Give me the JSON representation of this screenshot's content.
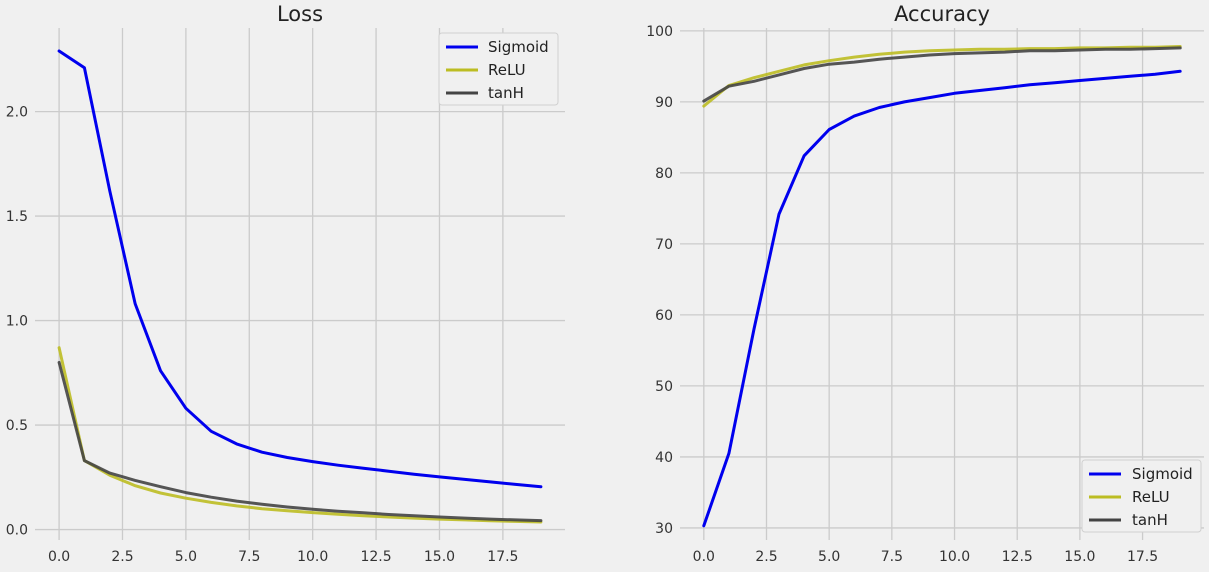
{
  "chart_data": [
    {
      "type": "line",
      "title": "Loss",
      "xlabel": "",
      "ylabel": "",
      "xlim": [
        -0.95,
        19.95
      ],
      "ylim": [
        -0.05,
        2.4
      ],
      "xticks": [
        0,
        2.5,
        5,
        7.5,
        10,
        12.5,
        15,
        17.5
      ],
      "xtick_labels": [
        "0.0",
        "2.5",
        "5.0",
        "7.5",
        "10.0",
        "12.5",
        "15.0",
        "17.5"
      ],
      "yticks": [
        0,
        0.5,
        1,
        1.5,
        2
      ],
      "ytick_labels": [
        "0.0",
        "0.5",
        "1.0",
        "1.5",
        "2.0"
      ],
      "grid": true,
      "legend_position": "top-right",
      "x": [
        0,
        1,
        2,
        3,
        4,
        5,
        6,
        7,
        8,
        9,
        10,
        11,
        12,
        13,
        14,
        15,
        16,
        17,
        18,
        19
      ],
      "series": [
        {
          "name": "Sigmoid",
          "color": "#0000ee",
          "values": [
            2.29,
            2.21,
            1.62,
            1.08,
            0.76,
            0.58,
            0.47,
            0.41,
            0.37,
            0.345,
            0.325,
            0.308,
            0.293,
            0.279,
            0.265,
            0.252,
            0.24,
            0.228,
            0.216,
            0.205
          ]
        },
        {
          "name": "ReLU",
          "color": "#bcbd22",
          "values": [
            0.87,
            0.33,
            0.26,
            0.21,
            0.175,
            0.15,
            0.13,
            0.113,
            0.1,
            0.09,
            0.081,
            0.073,
            0.066,
            0.06,
            0.055,
            0.05,
            0.046,
            0.042,
            0.039,
            0.036
          ]
        },
        {
          "name": "tanH",
          "color": "#444444",
          "values": [
            0.8,
            0.33,
            0.27,
            0.235,
            0.205,
            0.177,
            0.155,
            0.136,
            0.121,
            0.108,
            0.097,
            0.088,
            0.08,
            0.072,
            0.066,
            0.06,
            0.055,
            0.05,
            0.046,
            0.043
          ]
        }
      ]
    },
    {
      "type": "line",
      "title": "Accuracy",
      "xlabel": "",
      "ylabel": "",
      "xlim": [
        -0.95,
        19.95
      ],
      "ylim": [
        28.3,
        100.4
      ],
      "xticks": [
        0,
        2.5,
        5,
        7.5,
        10,
        12.5,
        15,
        17.5
      ],
      "xtick_labels": [
        "0.0",
        "2.5",
        "5.0",
        "7.5",
        "10.0",
        "12.5",
        "15.0",
        "17.5"
      ],
      "yticks": [
        30,
        40,
        50,
        60,
        70,
        80,
        90,
        100
      ],
      "ytick_labels": [
        "30",
        "40",
        "50",
        "60",
        "70",
        "80",
        "90",
        "100"
      ],
      "grid": true,
      "legend_position": "bottom-right",
      "x": [
        0,
        1,
        2,
        3,
        4,
        5,
        6,
        7,
        8,
        9,
        10,
        11,
        12,
        13,
        14,
        15,
        16,
        17,
        18,
        19
      ],
      "series": [
        {
          "name": "Sigmoid",
          "color": "#0000ee",
          "values": [
            30.3,
            40.5,
            58.0,
            74.2,
            82.4,
            86.1,
            88.0,
            89.2,
            90.0,
            90.6,
            91.2,
            91.6,
            92.0,
            92.4,
            92.7,
            93.0,
            93.3,
            93.6,
            93.9,
            94.3
          ]
        },
        {
          "name": "ReLU",
          "color": "#bcbd22",
          "values": [
            89.4,
            92.3,
            93.4,
            94.3,
            95.2,
            95.8,
            96.3,
            96.7,
            97.0,
            97.2,
            97.3,
            97.4,
            97.4,
            97.5,
            97.5,
            97.6,
            97.6,
            97.7,
            97.7,
            97.8
          ]
        },
        {
          "name": "tanH",
          "color": "#444444",
          "values": [
            90.1,
            92.2,
            92.9,
            93.8,
            94.7,
            95.3,
            95.6,
            96.0,
            96.3,
            96.6,
            96.8,
            96.9,
            97.0,
            97.2,
            97.2,
            97.3,
            97.4,
            97.4,
            97.5,
            97.6
          ]
        }
      ]
    }
  ]
}
